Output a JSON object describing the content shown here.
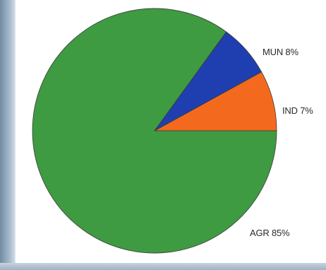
{
  "chart_data": {
    "type": "pie",
    "title": "",
    "slices": [
      {
        "label": "MUN 8%",
        "value": 8,
        "color": "#f36a1e"
      },
      {
        "label": "IND 7%",
        "value": 7,
        "color": "#1f3fb0"
      },
      {
        "label": "AGR 85%",
        "value": 85,
        "color": "#3f9b41"
      }
    ]
  }
}
